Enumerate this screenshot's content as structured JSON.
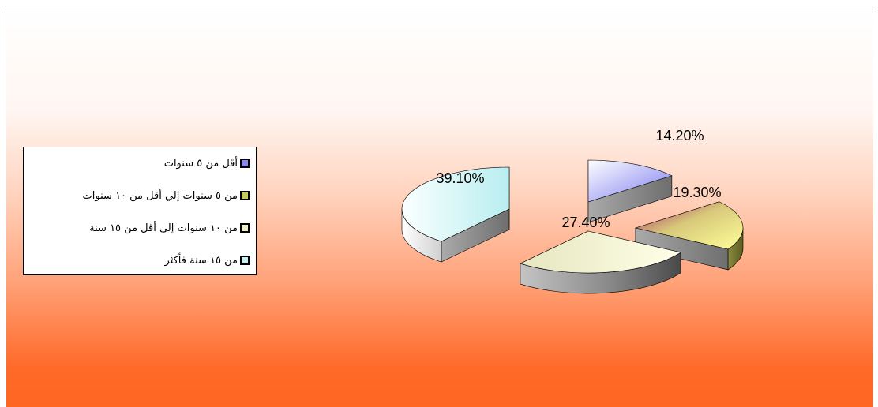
{
  "chart_data": {
    "type": "pie",
    "style": "3d-exploded",
    "slices": [
      {
        "label": "أقل من ٥ سنوات",
        "value": 14.2,
        "value_text": "14.20%",
        "color": "#8888ee"
      },
      {
        "label": "من ٥ سنوات إلي أقل من ١٠ سنوات",
        "value": 19.3,
        "value_text": "19.30%",
        "color": "#c8c860"
      },
      {
        "label": "من ١٠ سنوات إلي أقل من ١٥ سنة",
        "value": 27.4,
        "value_text": "27.40%",
        "color": "#f0f0c8"
      },
      {
        "label": "من ١٥ سنة فأكثر",
        "value": 39.1,
        "value_text": "39.10%",
        "color": "#c8f0f0"
      }
    ],
    "legend_placement": "left",
    "background": {
      "top": "#ffffff",
      "bottom": "#ff6620"
    }
  }
}
